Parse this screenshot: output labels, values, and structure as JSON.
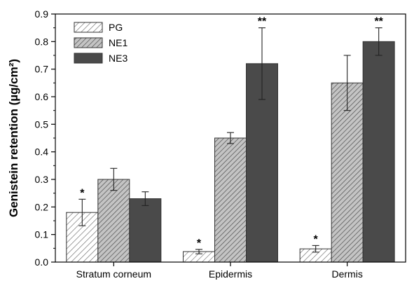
{
  "chart_data": {
    "type": "bar",
    "title": "",
    "xlabel": "",
    "ylabel": "Genistein retention (µg/cm²)",
    "ylim": [
      0,
      0.9
    ],
    "yticks": [
      "0.0",
      "0.1",
      "0.2",
      "0.3",
      "0.4",
      "0.5",
      "0.6",
      "0.7",
      "0.8",
      "0.9"
    ],
    "grid": false,
    "legend_position": "top-left",
    "categories": [
      "Stratum corneum",
      "Epidermis",
      "Dermis"
    ],
    "series": [
      {
        "name": "PG",
        "style": "hatched-light",
        "color": "#ffffff",
        "hatch_color": "#666666",
        "values": [
          0.18,
          0.038,
          0.048
        ],
        "errors": [
          0.048,
          0.008,
          0.012
        ],
        "annotations": [
          "*",
          "*",
          "*"
        ]
      },
      {
        "name": "NE1",
        "style": "hatched-dark",
        "color": "#c4c4c4",
        "hatch_color": "#555555",
        "values": [
          0.3,
          0.45,
          0.65
        ],
        "errors": [
          0.04,
          0.02,
          0.1
        ],
        "annotations": [
          "",
          "",
          ""
        ]
      },
      {
        "name": "NE3",
        "style": "solid",
        "color": "#4a4a4a",
        "values": [
          0.23,
          0.72,
          0.8
        ],
        "errors": [
          0.025,
          0.13,
          0.05
        ],
        "annotations": [
          "",
          "**",
          "**"
        ]
      }
    ]
  }
}
